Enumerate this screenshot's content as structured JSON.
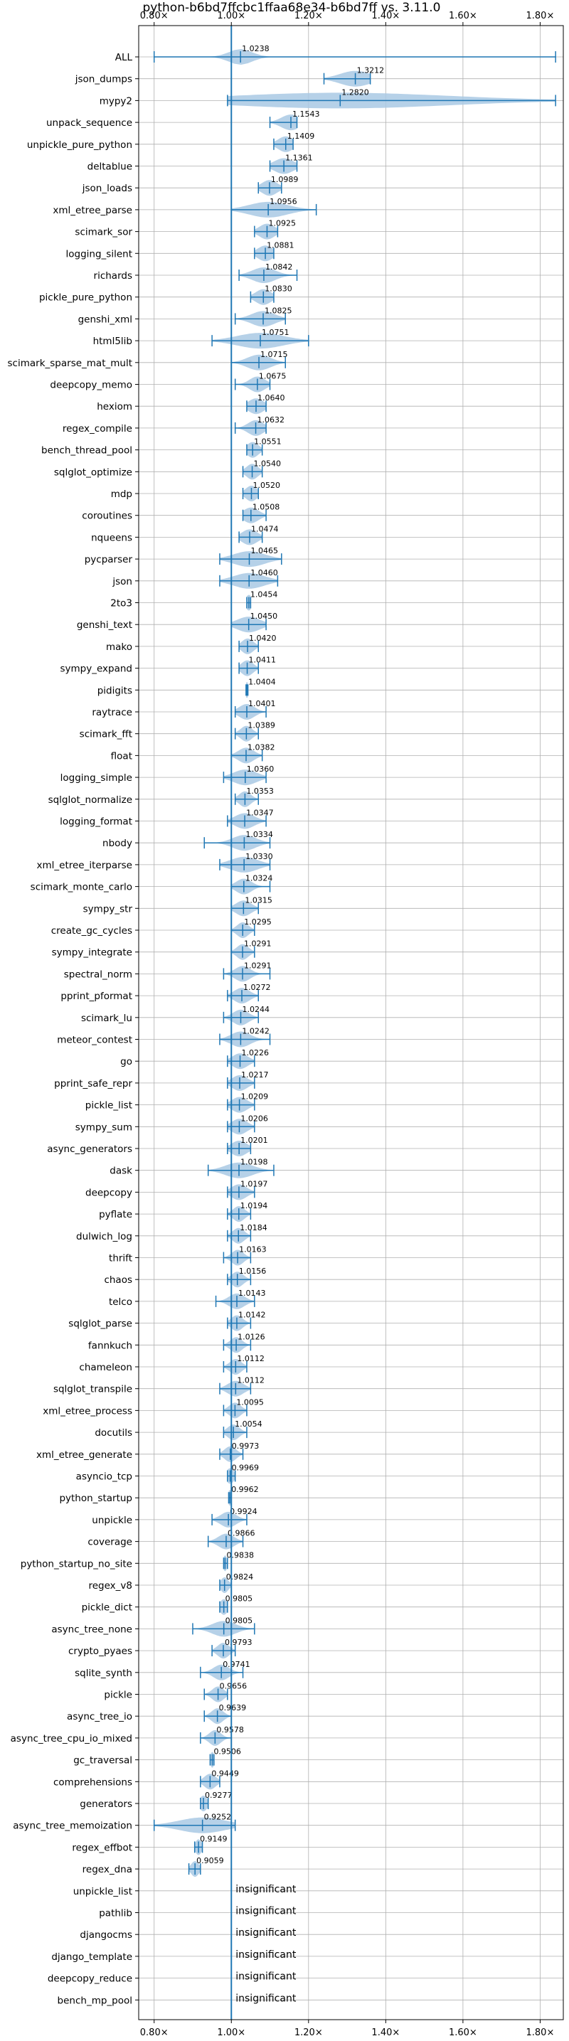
{
  "chart_data": {
    "type": "violin",
    "title": "python-b6bd7ffcbc1ffaa68e34-b6bd7ff vs. 3.11.0",
    "xlim": [
      0.76,
      1.86
    ],
    "xticks": [
      0.8,
      1.0,
      1.2,
      1.4,
      1.6,
      1.8
    ],
    "xtick_labels": [
      "0.80×",
      "1.00×",
      "1.20×",
      "1.40×",
      "1.60×",
      "1.80×"
    ],
    "reference_line": 1.0,
    "grid": true,
    "colors": {
      "violin": "#a9c9e4",
      "line": "#1f77b4",
      "grid": "#b0b0b0"
    },
    "insignificant_text": "insignificant",
    "benchmarks": [
      {
        "name": "ALL",
        "value": "1.0238",
        "mean": 1.0238,
        "min": 0.8,
        "max": 1.84,
        "spread": 0.03
      },
      {
        "name": "json_dumps",
        "value": "1.3212",
        "mean": 1.3212,
        "min": 1.24,
        "max": 1.36,
        "spread": 0.04
      },
      {
        "name": "mypy2",
        "value": "1.2820",
        "mean": 1.282,
        "min": 0.99,
        "max": 1.84,
        "spread": 0.28
      },
      {
        "name": "unpack_sequence",
        "value": "1.1543",
        "mean": 1.1543,
        "min": 1.1,
        "max": 1.17,
        "spread": 0.025
      },
      {
        "name": "unpickle_pure_python",
        "value": "1.1409",
        "mean": 1.1409,
        "min": 1.11,
        "max": 1.16,
        "spread": 0.02
      },
      {
        "name": "deltablue",
        "value": "1.1361",
        "mean": 1.1361,
        "min": 1.1,
        "max": 1.17,
        "spread": 0.025
      },
      {
        "name": "json_loads",
        "value": "1.0989",
        "mean": 1.0989,
        "min": 1.07,
        "max": 1.13,
        "spread": 0.02
      },
      {
        "name": "xml_etree_parse",
        "value": "1.0956",
        "mean": 1.0956,
        "min": 1.0,
        "max": 1.22,
        "spread": 0.05
      },
      {
        "name": "scimark_sor",
        "value": "1.0925",
        "mean": 1.0925,
        "min": 1.06,
        "max": 1.12,
        "spread": 0.02
      },
      {
        "name": "logging_silent",
        "value": "1.0881",
        "mean": 1.0881,
        "min": 1.06,
        "max": 1.11,
        "spread": 0.02
      },
      {
        "name": "richards",
        "value": "1.0842",
        "mean": 1.0842,
        "min": 1.02,
        "max": 1.17,
        "spread": 0.03
      },
      {
        "name": "pickle_pure_python",
        "value": "1.0830",
        "mean": 1.083,
        "min": 1.05,
        "max": 1.11,
        "spread": 0.02
      },
      {
        "name": "genshi_xml",
        "value": "1.0825",
        "mean": 1.0825,
        "min": 1.01,
        "max": 1.14,
        "spread": 0.03
      },
      {
        "name": "html5lib",
        "value": "1.0751",
        "mean": 1.0751,
        "min": 0.95,
        "max": 1.2,
        "spread": 0.06
      },
      {
        "name": "scimark_sparse_mat_mult",
        "value": "1.0715",
        "mean": 1.0715,
        "min": 1.0,
        "max": 1.14,
        "spread": 0.03
      },
      {
        "name": "deepcopy_memo",
        "value": "1.0675",
        "mean": 1.0675,
        "min": 1.01,
        "max": 1.1,
        "spread": 0.02
      },
      {
        "name": "hexiom",
        "value": "1.0640",
        "mean": 1.064,
        "min": 1.04,
        "max": 1.09,
        "spread": 0.02
      },
      {
        "name": "regex_compile",
        "value": "1.0632",
        "mean": 1.0632,
        "min": 1.01,
        "max": 1.09,
        "spread": 0.02
      },
      {
        "name": "bench_thread_pool",
        "value": "1.0551",
        "mean": 1.0551,
        "min": 1.04,
        "max": 1.08,
        "spread": 0.015
      },
      {
        "name": "sqlglot_optimize",
        "value": "1.0540",
        "mean": 1.054,
        "min": 1.03,
        "max": 1.08,
        "spread": 0.015
      },
      {
        "name": "mdp",
        "value": "1.0520",
        "mean": 1.052,
        "min": 1.03,
        "max": 1.07,
        "spread": 0.015
      },
      {
        "name": "coroutines",
        "value": "1.0508",
        "mean": 1.0508,
        "min": 1.03,
        "max": 1.09,
        "spread": 0.02
      },
      {
        "name": "nqueens",
        "value": "1.0474",
        "mean": 1.0474,
        "min": 1.02,
        "max": 1.08,
        "spread": 0.02
      },
      {
        "name": "pycparser",
        "value": "1.0465",
        "mean": 1.0465,
        "min": 0.97,
        "max": 1.13,
        "spread": 0.04
      },
      {
        "name": "json",
        "value": "1.0460",
        "mean": 1.046,
        "min": 0.97,
        "max": 1.12,
        "spread": 0.04
      },
      {
        "name": "2to3",
        "value": "1.0454",
        "mean": 1.0454,
        "min": 1.04,
        "max": 1.05,
        "spread": 0.008
      },
      {
        "name": "genshi_text",
        "value": "1.0450",
        "mean": 1.045,
        "min": 1.0,
        "max": 1.09,
        "spread": 0.03
      },
      {
        "name": "mako",
        "value": "1.0420",
        "mean": 1.042,
        "min": 1.02,
        "max": 1.07,
        "spread": 0.015
      },
      {
        "name": "sympy_expand",
        "value": "1.0411",
        "mean": 1.0411,
        "min": 1.02,
        "max": 1.07,
        "spread": 0.015
      },
      {
        "name": "pidigits",
        "value": "1.0404",
        "mean": 1.0404,
        "min": 1.038,
        "max": 1.043,
        "spread": 0.005
      },
      {
        "name": "raytrace",
        "value": "1.0401",
        "mean": 1.0401,
        "min": 1.01,
        "max": 1.09,
        "spread": 0.02
      },
      {
        "name": "scimark_fft",
        "value": "1.0389",
        "mean": 1.0389,
        "min": 1.01,
        "max": 1.07,
        "spread": 0.015
      },
      {
        "name": "float",
        "value": "1.0382",
        "mean": 1.0382,
        "min": 1.0,
        "max": 1.08,
        "spread": 0.02
      },
      {
        "name": "logging_simple",
        "value": "1.0360",
        "mean": 1.036,
        "min": 0.98,
        "max": 1.09,
        "spread": 0.03
      },
      {
        "name": "sqlglot_normalize",
        "value": "1.0353",
        "mean": 1.0353,
        "min": 1.01,
        "max": 1.07,
        "spread": 0.015
      },
      {
        "name": "logging_format",
        "value": "1.0347",
        "mean": 1.0347,
        "min": 0.99,
        "max": 1.09,
        "spread": 0.025
      },
      {
        "name": "nbody",
        "value": "1.0334",
        "mean": 1.0334,
        "min": 0.93,
        "max": 1.1,
        "spread": 0.03
      },
      {
        "name": "xml_etree_iterparse",
        "value": "1.0330",
        "mean": 1.033,
        "min": 0.97,
        "max": 1.1,
        "spread": 0.035
      },
      {
        "name": "scimark_monte_carlo",
        "value": "1.0324",
        "mean": 1.0324,
        "min": 1.0,
        "max": 1.1,
        "spread": 0.02
      },
      {
        "name": "sympy_str",
        "value": "1.0315",
        "mean": 1.0315,
        "min": 1.0,
        "max": 1.07,
        "spread": 0.02
      },
      {
        "name": "create_gc_cycles",
        "value": "1.0295",
        "mean": 1.0295,
        "min": 1.0,
        "max": 1.06,
        "spread": 0.015
      },
      {
        "name": "sympy_integrate",
        "value": "1.0291",
        "mean": 1.0291,
        "min": 1.0,
        "max": 1.06,
        "spread": 0.015
      },
      {
        "name": "spectral_norm",
        "value": "1.0291",
        "mean": 1.0291,
        "min": 0.98,
        "max": 1.1,
        "spread": 0.02
      },
      {
        "name": "pprint_pformat",
        "value": "1.0272",
        "mean": 1.0272,
        "min": 0.99,
        "max": 1.07,
        "spread": 0.02
      },
      {
        "name": "scimark_lu",
        "value": "1.0244",
        "mean": 1.0244,
        "min": 0.98,
        "max": 1.07,
        "spread": 0.02
      },
      {
        "name": "meteor_contest",
        "value": "1.0242",
        "mean": 1.0242,
        "min": 0.97,
        "max": 1.1,
        "spread": 0.025
      },
      {
        "name": "go",
        "value": "1.0226",
        "mean": 1.0226,
        "min": 0.99,
        "max": 1.06,
        "spread": 0.02
      },
      {
        "name": "pprint_safe_repr",
        "value": "1.0217",
        "mean": 1.0217,
        "min": 0.99,
        "max": 1.06,
        "spread": 0.02
      },
      {
        "name": "pickle_list",
        "value": "1.0209",
        "mean": 1.0209,
        "min": 0.99,
        "max": 1.06,
        "spread": 0.02
      },
      {
        "name": "sympy_sum",
        "value": "1.0206",
        "mean": 1.0206,
        "min": 0.99,
        "max": 1.06,
        "spread": 0.02
      },
      {
        "name": "async_generators",
        "value": "1.0201",
        "mean": 1.0201,
        "min": 0.99,
        "max": 1.05,
        "spread": 0.02
      },
      {
        "name": "dask",
        "value": "1.0198",
        "mean": 1.0198,
        "min": 0.94,
        "max": 1.11,
        "spread": 0.035
      },
      {
        "name": "deepcopy",
        "value": "1.0197",
        "mean": 1.0197,
        "min": 0.99,
        "max": 1.06,
        "spread": 0.02
      },
      {
        "name": "pyflate",
        "value": "1.0194",
        "mean": 1.0194,
        "min": 0.99,
        "max": 1.05,
        "spread": 0.015
      },
      {
        "name": "dulwich_log",
        "value": "1.0184",
        "mean": 1.0184,
        "min": 0.99,
        "max": 1.05,
        "spread": 0.015
      },
      {
        "name": "thrift",
        "value": "1.0163",
        "mean": 1.0163,
        "min": 0.98,
        "max": 1.05,
        "spread": 0.015
      },
      {
        "name": "chaos",
        "value": "1.0156",
        "mean": 1.0156,
        "min": 0.99,
        "max": 1.05,
        "spread": 0.015
      },
      {
        "name": "telco",
        "value": "1.0143",
        "mean": 1.0143,
        "min": 0.96,
        "max": 1.06,
        "spread": 0.02
      },
      {
        "name": "sqlglot_parse",
        "value": "1.0142",
        "mean": 1.0142,
        "min": 0.99,
        "max": 1.05,
        "spread": 0.015
      },
      {
        "name": "fannkuch",
        "value": "1.0126",
        "mean": 1.0126,
        "min": 0.98,
        "max": 1.05,
        "spread": 0.015
      },
      {
        "name": "chameleon",
        "value": "1.0112",
        "mean": 1.0112,
        "min": 0.98,
        "max": 1.04,
        "spread": 0.015
      },
      {
        "name": "sqlglot_transpile",
        "value": "1.0112",
        "mean": 1.0112,
        "min": 0.97,
        "max": 1.05,
        "spread": 0.02
      },
      {
        "name": "xml_etree_process",
        "value": "1.0095",
        "mean": 1.0095,
        "min": 0.98,
        "max": 1.04,
        "spread": 0.015
      },
      {
        "name": "docutils",
        "value": "1.0054",
        "mean": 1.0054,
        "min": 0.98,
        "max": 1.04,
        "spread": 0.015
      },
      {
        "name": "xml_etree_generate",
        "value": "0.9973",
        "mean": 0.9973,
        "min": 0.97,
        "max": 1.03,
        "spread": 0.015
      },
      {
        "name": "asyncio_tcp",
        "value": "0.9969",
        "mean": 0.9969,
        "min": 0.99,
        "max": 1.01,
        "spread": 0.01
      },
      {
        "name": "python_startup",
        "value": "0.9962",
        "mean": 0.9962,
        "min": 0.993,
        "max": 1.0,
        "spread": 0.005
      },
      {
        "name": "unpickle",
        "value": "0.9924",
        "mean": 0.9924,
        "min": 0.95,
        "max": 1.04,
        "spread": 0.02
      },
      {
        "name": "coverage",
        "value": "0.9866",
        "mean": 0.9866,
        "min": 0.94,
        "max": 1.03,
        "spread": 0.02
      },
      {
        "name": "python_startup_no_site",
        "value": "0.9838",
        "mean": 0.9838,
        "min": 0.98,
        "max": 0.99,
        "spread": 0.005
      },
      {
        "name": "regex_v8",
        "value": "0.9824",
        "mean": 0.9824,
        "min": 0.97,
        "max": 1.0,
        "spread": 0.01
      },
      {
        "name": "pickle_dict",
        "value": "0.9805",
        "mean": 0.9805,
        "min": 0.97,
        "max": 0.99,
        "spread": 0.01
      },
      {
        "name": "async_tree_none",
        "value": "0.9805",
        "mean": 0.9805,
        "min": 0.9,
        "max": 1.06,
        "spread": 0.03
      },
      {
        "name": "crypto_pyaes",
        "value": "0.9793",
        "mean": 0.9793,
        "min": 0.95,
        "max": 1.01,
        "spread": 0.015
      },
      {
        "name": "sqlite_synth",
        "value": "0.9741",
        "mean": 0.9741,
        "min": 0.92,
        "max": 1.03,
        "spread": 0.02
      },
      {
        "name": "pickle",
        "value": "0.9656",
        "mean": 0.9656,
        "min": 0.93,
        "max": 0.99,
        "spread": 0.015
      },
      {
        "name": "async_tree_io",
        "value": "0.9639",
        "mean": 0.9639,
        "min": 0.93,
        "max": 1.0,
        "spread": 0.015
      },
      {
        "name": "async_tree_cpu_io_mixed",
        "value": "0.9578",
        "mean": 0.9578,
        "min": 0.92,
        "max": 1.0,
        "spread": 0.015
      },
      {
        "name": "gc_traversal",
        "value": "0.9506",
        "mean": 0.9506,
        "min": 0.945,
        "max": 0.955,
        "spread": 0.005
      },
      {
        "name": "comprehensions",
        "value": "0.9449",
        "mean": 0.9449,
        "min": 0.92,
        "max": 0.97,
        "spread": 0.015
      },
      {
        "name": "generators",
        "value": "0.9277",
        "mean": 0.9277,
        "min": 0.92,
        "max": 0.94,
        "spread": 0.01
      },
      {
        "name": "async_tree_memoization",
        "value": "0.9252",
        "mean": 0.9252,
        "min": 0.8,
        "max": 1.01,
        "spread": 0.06
      },
      {
        "name": "regex_effbot",
        "value": "0.9149",
        "mean": 0.9149,
        "min": 0.905,
        "max": 0.925,
        "spread": 0.008
      },
      {
        "name": "regex_dna",
        "value": "0.9059",
        "mean": 0.9059,
        "min": 0.89,
        "max": 0.92,
        "spread": 0.01
      },
      {
        "name": "unpickle_list",
        "insignificant": true
      },
      {
        "name": "pathlib",
        "insignificant": true
      },
      {
        "name": "djangocms",
        "insignificant": true
      },
      {
        "name": "django_template",
        "insignificant": true
      },
      {
        "name": "deepcopy_reduce",
        "insignificant": true
      },
      {
        "name": "bench_mp_pool",
        "insignificant": true
      }
    ]
  }
}
